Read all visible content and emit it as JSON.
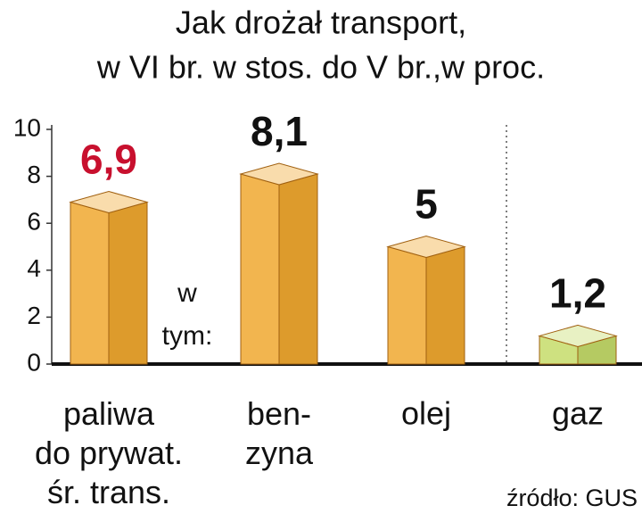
{
  "chart_data": {
    "type": "bar3d",
    "title": "Jak drożał transport,",
    "subtitle": "w VI br. w stos. do V br.,w proc.",
    "categories": [
      "paliwa\ndo prywat.\nśr. trans.",
      "ben-\nzyna",
      "olej",
      "gaz"
    ],
    "values": [
      6.9,
      8.1,
      5,
      1.2
    ],
    "value_labels": [
      "6,9",
      "8,1",
      "5",
      "1,2"
    ],
    "colors": [
      "#f0a830",
      "#f0a830",
      "#f0a830",
      "#c5dc6a"
    ],
    "value_label_colors": [
      "#c8102e",
      "#111111",
      "#111111",
      "#111111"
    ],
    "annotation": "w\ntym:",
    "source": "źródło: GUS",
    "ylim": [
      0,
      10
    ],
    "yticks": [
      0,
      2,
      4,
      6,
      8,
      10
    ],
    "grid": false
  }
}
